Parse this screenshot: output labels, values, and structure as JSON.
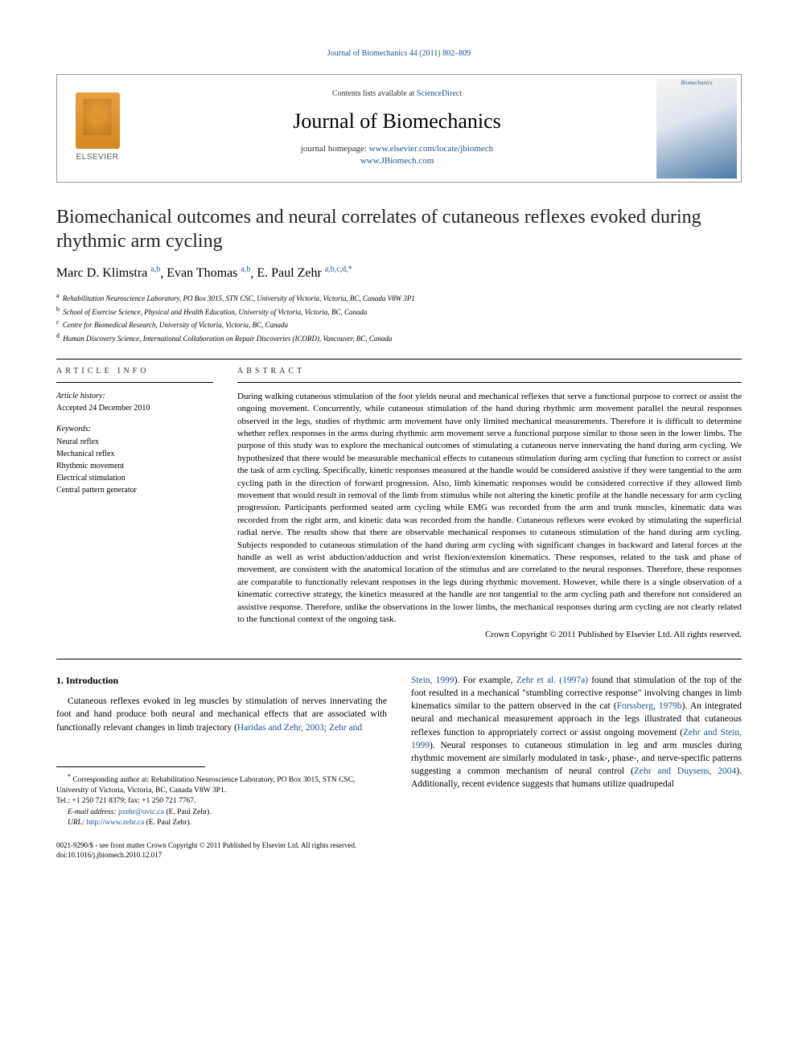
{
  "header": {
    "citation": "Journal of Biomechanics 44 (2011) 802–809",
    "contents_prefix": "Contents lists available at ",
    "contents_link": "ScienceDirect",
    "journal_name": "Journal of Biomechanics",
    "homepage_prefix": "journal homepage: ",
    "homepage_url1": "www.elsevier.com/locate/jbiomech",
    "homepage_url2": "www.JBiomech.com",
    "publisher_name": "ELSEVIER",
    "cover_label": "Biomechanics"
  },
  "article": {
    "title": "Biomechanical outcomes and neural correlates of cutaneous reflexes evoked during rhythmic arm cycling",
    "authors": [
      {
        "name": "Marc D. Klimstra",
        "affil": "a,b"
      },
      {
        "name": "Evan Thomas",
        "affil": "a,b"
      },
      {
        "name": "E. Paul Zehr",
        "affil": "a,b,c,d,",
        "corresponding": true
      }
    ],
    "affiliations": [
      {
        "sup": "a",
        "text": "Rehabilitation Neuroscience Laboratory, PO Box 3015, STN CSC, University of Victoria, Victoria, BC, Canada V8W 3P1"
      },
      {
        "sup": "b",
        "text": "School of Exercise Science, Physical and Health Education, University of Victoria, Victoria, BC, Canada"
      },
      {
        "sup": "c",
        "text": "Centre for Biomedical Research, University of Victoria, Victoria, BC, Canada"
      },
      {
        "sup": "d",
        "text": "Human Discovery Science, International Collaboration on Repair Discoveries (ICORD), Vancouver, BC, Canada"
      }
    ]
  },
  "info": {
    "label": "ARTICLE INFO",
    "history_label": "Article history:",
    "history_text": "Accepted 24 December 2010",
    "keywords_label": "Keywords:",
    "keywords": [
      "Neural reflex",
      "Mechanical reflex",
      "Rhythmic movement",
      "Electrical stimulation",
      "Central pattern generator"
    ]
  },
  "abstract": {
    "label": "ABSTRACT",
    "text": "During walking cutaneous stimulation of the foot yields neural and mechanical reflexes that serve a functional purpose to correct or assist the ongoing movement. Concurrently, while cutaneous stimulation of the hand during rhythmic arm movement parallel the neural responses observed in the legs, studies of rhythmic arm movement have only limited mechanical measurements. Therefore it is difficult to determine whether reflex responses in the arms during rhythmic arm movement serve a functional purpose similar to those seen in the lower limbs. The purpose of this study was to explore the mechanical outcomes of stimulating a cutaneous nerve innervating the hand during arm cycling. We hypothesized that there would be measurable mechanical effects to cutaneous stimulation during arm cycling that function to correct or assist the task of arm cycling. Specifically, kinetic responses measured at the handle would be considered assistive if they were tangential to the arm cycling path in the direction of forward progression. Also, limb kinematic responses would be considered corrective if they allowed limb movement that would result in removal of the limb from stimulus while not altering the kinetic profile at the handle necessary for arm cycling progression. Participants performed seated arm cycling while EMG was recorded from the arm and trunk muscles, kinematic data was recorded from the right arm, and kinetic data was recorded from the handle. Cutaneous reflexes were evoked by stimulating the superficial radial nerve. The results show that there are observable mechanical responses to cutaneous stimulation of the hand during arm cycling. Subjects responded to cutaneous stimulation of the hand during arm cycling with significant changes in backward and lateral forces at the handle as well as wrist abduction/adduction and wrist flexion/extension kinematics. These responses, related to the task and phase of movement, are consistent with the anatomical location of the stimulus and are correlated to the neural responses. Therefore, these responses are comparable to functionally relevant responses in the legs during rhythmic movement. However, while there is a single observation of a kinematic corrective strategy, the kinetics measured at the handle are not tangential to the arm cycling path and therefore not considered an assistive response. Therefore, unlike the observations in the lower limbs, the mechanical responses during arm cycling are not clearly related to the functional context of the ongoing task.",
    "copyright": "Crown Copyright © 2011 Published by Elsevier Ltd. All rights reserved."
  },
  "body": {
    "section_number": "1.",
    "section_title": "Introduction",
    "col1_para": "Cutaneous reflexes evoked in leg muscles by stimulation of nerves innervating the foot and hand produce both neural and mechanical effects that are associated with functionally relevant changes in limb trajectory (",
    "col1_link1": "Haridas and Zehr, 2003; Zehr and",
    "col2_link1": "Stein, 1999",
    "col2_para1": "). For example, ",
    "col2_link2": "Zehr et al. (1997a)",
    "col2_para2": " found that stimulation of the top of the foot resulted in a mechanical \"stumbling corrective response\" involving changes in limb kinematics similar to the pattern observed in the cat (",
    "col2_link3": "Forssberg, 1979b",
    "col2_para3": "). An integrated neural and mechanical measurement approach in the legs illustrated that cutaneous reflexes function to appropriately correct or assist ongoing movement (",
    "col2_link4": "Zehr and Stein, 1999",
    "col2_para4": "). Neural responses to cutaneous stimulation in leg and arm muscles during rhythmic movement are similarly modulated in task-, phase-, and nerve-specific patterns suggesting a common mechanism of neural control (",
    "col2_link5": "Zehr and Duysens, 2004",
    "col2_para5": "). Additionally, recent evidence suggests that humans utilize quadrupedal"
  },
  "footnotes": {
    "corresponding": "Corresponding author at: Rehabilitation Neuroscience Laboratory, PO Box 3015, STN CSC, University of Victoria, Victoria, BC, Canada V8W 3P1.",
    "tel": "Tel.: +1 250 721 8379; fax: +1 250 721 7767.",
    "email_label": "E-mail address:",
    "email": "pzehr@uvic.ca",
    "email_name": "(E. Paul Zehr).",
    "url_label": "URL:",
    "url": "http://www.zehr.ca",
    "url_name": "(E. Paul Zehr)."
  },
  "footer": {
    "issn": "0021-9290/$ - see front matter Crown Copyright © 2011 Published by Elsevier Ltd. All rights reserved.",
    "doi": "doi:10.1016/j.jbiomech.2010.12.017"
  },
  "colors": {
    "link": "#1a5490",
    "text": "#000000",
    "border": "#999999"
  }
}
